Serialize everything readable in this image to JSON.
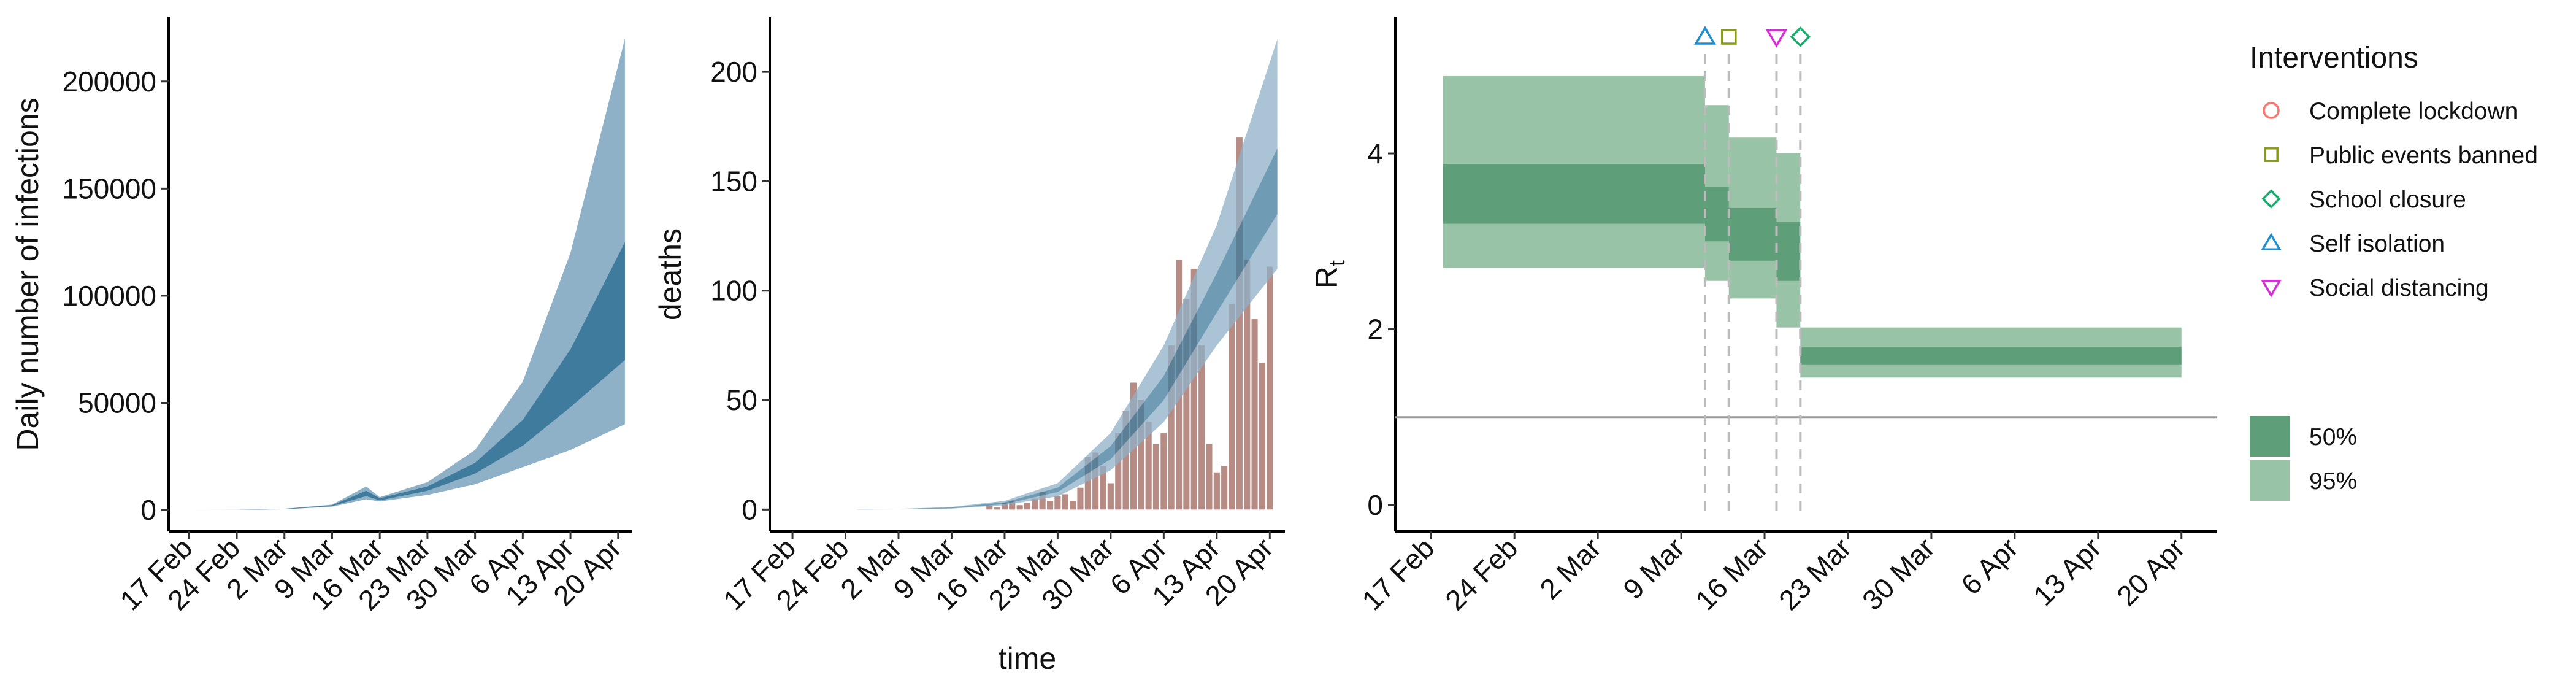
{
  "chart_data": [
    {
      "type": "area",
      "ylabel": "Daily number of infections",
      "xlabel": "",
      "x_ticks": [
        "17 Feb",
        "24 Feb",
        "2 Mar",
        "9 Mar",
        "16 Mar",
        "23 Mar",
        "30 Mar",
        "6 Apr",
        "13 Apr",
        "20 Apr"
      ],
      "y_ticks": [
        0,
        50000,
        100000,
        150000,
        200000
      ],
      "ylim": [
        -10000,
        230000
      ],
      "x_range": [
        "2020-02-14",
        "2020-04-22"
      ],
      "colors": {
        "band95": "#8fb1c7",
        "band50": "#3f7b9c"
      },
      "series": [
        {
          "band": "95%",
          "x": [
            "2020-02-17",
            "2020-02-24",
            "2020-03-02",
            "2020-03-09",
            "2020-03-14",
            "2020-03-16",
            "2020-03-23",
            "2020-03-30",
            "2020-04-06",
            "2020-04-13",
            "2020-04-21"
          ],
          "lower": [
            0,
            50,
            300,
            1500,
            5000,
            4000,
            7000,
            12000,
            20000,
            28000,
            40000
          ],
          "upper": [
            0,
            100,
            600,
            2500,
            11000,
            6000,
            13000,
            28000,
            60000,
            120000,
            220000
          ]
        },
        {
          "band": "50%",
          "x": [
            "2020-02-17",
            "2020-02-24",
            "2020-03-02",
            "2020-03-09",
            "2020-03-14",
            "2020-03-16",
            "2020-03-23",
            "2020-03-30",
            "2020-04-06",
            "2020-04-13",
            "2020-04-21"
          ],
          "lower": [
            0,
            70,
            400,
            1800,
            6500,
            4500,
            9000,
            17000,
            30000,
            48000,
            70000
          ],
          "upper": [
            0,
            90,
            500,
            2200,
            9000,
            5500,
            11000,
            22000,
            42000,
            75000,
            125000
          ]
        }
      ]
    },
    {
      "type": "bar",
      "ylabel": "deaths",
      "xlabel": "time",
      "x_ticks": [
        "17 Feb",
        "24 Feb",
        "2 Mar",
        "9 Mar",
        "16 Mar",
        "23 Mar",
        "30 Mar",
        "6 Apr",
        "13 Apr",
        "20 Apr"
      ],
      "y_ticks": [
        0,
        50,
        100,
        150,
        200
      ],
      "ylim": [
        -10,
        225
      ],
      "x_range": [
        "2020-02-14",
        "2020-04-22"
      ],
      "colors": {
        "bars": "#b78c85",
        "band95": "#8fb1c7",
        "band50": "#3f7b9c"
      },
      "bars": [
        {
          "date": "2020-03-14",
          "value": 2
        },
        {
          "date": "2020-03-15",
          "value": 1
        },
        {
          "date": "2020-03-16",
          "value": 3
        },
        {
          "date": "2020-03-17",
          "value": 4
        },
        {
          "date": "2020-03-18",
          "value": 2
        },
        {
          "date": "2020-03-19",
          "value": 3
        },
        {
          "date": "2020-03-20",
          "value": 5
        },
        {
          "date": "2020-03-21",
          "value": 8
        },
        {
          "date": "2020-03-22",
          "value": 4
        },
        {
          "date": "2020-03-23",
          "value": 6
        },
        {
          "date": "2020-03-24",
          "value": 7
        },
        {
          "date": "2020-03-25",
          "value": 4
        },
        {
          "date": "2020-03-26",
          "value": 10
        },
        {
          "date": "2020-03-27",
          "value": 24
        },
        {
          "date": "2020-03-28",
          "value": 26
        },
        {
          "date": "2020-03-29",
          "value": 20
        },
        {
          "date": "2020-03-30",
          "value": 12
        },
        {
          "date": "2020-03-31",
          "value": 35
        },
        {
          "date": "2020-04-01",
          "value": 45
        },
        {
          "date": "2020-04-02",
          "value": 58
        },
        {
          "date": "2020-04-03",
          "value": 50
        },
        {
          "date": "2020-04-04",
          "value": 40
        },
        {
          "date": "2020-04-05",
          "value": 30
        },
        {
          "date": "2020-04-06",
          "value": 35
        },
        {
          "date": "2020-04-07",
          "value": 75
        },
        {
          "date": "2020-04-08",
          "value": 114
        },
        {
          "date": "2020-04-09",
          "value": 96
        },
        {
          "date": "2020-04-10",
          "value": 110
        },
        {
          "date": "2020-04-11",
          "value": 75
        },
        {
          "date": "2020-04-12",
          "value": 30
        },
        {
          "date": "2020-04-13",
          "value": 17
        },
        {
          "date": "2020-04-14",
          "value": 20
        },
        {
          "date": "2020-04-15",
          "value": 94
        },
        {
          "date": "2020-04-16",
          "value": 170
        },
        {
          "date": "2020-04-17",
          "value": 114
        },
        {
          "date": "2020-04-18",
          "value": 87
        },
        {
          "date": "2020-04-19",
          "value": 67
        },
        {
          "date": "2020-04-20",
          "value": 111
        }
      ],
      "series": [
        {
          "band": "95%",
          "x": [
            "2020-02-24",
            "2020-03-02",
            "2020-03-09",
            "2020-03-16",
            "2020-03-23",
            "2020-03-30",
            "2020-04-06",
            "2020-04-13",
            "2020-04-21"
          ],
          "lower": [
            0,
            0.1,
            0.4,
            2,
            6,
            18,
            40,
            75,
            110
          ],
          "upper": [
            0,
            0.3,
            1.2,
            4,
            12,
            35,
            75,
            130,
            215
          ]
        },
        {
          "band": "50%",
          "x": [
            "2020-02-24",
            "2020-03-02",
            "2020-03-09",
            "2020-03-16",
            "2020-03-23",
            "2020-03-30",
            "2020-04-06",
            "2020-04-13",
            "2020-04-21"
          ],
          "lower": [
            0,
            0.15,
            0.6,
            2.5,
            8,
            23,
            50,
            90,
            135
          ],
          "upper": [
            0,
            0.2,
            0.9,
            3.3,
            10,
            29,
            61,
            108,
            165
          ]
        }
      ]
    },
    {
      "type": "area",
      "ylabel": "R",
      "ylabel_sub": "t",
      "xlabel": "",
      "x_ticks": [
        "17 Feb",
        "24 Feb",
        "2 Mar",
        "9 Mar",
        "16 Mar",
        "23 Mar",
        "30 Mar",
        "6 Apr",
        "13 Apr",
        "20 Apr"
      ],
      "y_ticks": [
        0,
        2,
        4
      ],
      "ylim": [
        -0.3,
        5.55
      ],
      "x_range": [
        "2020-02-14",
        "2020-04-23"
      ],
      "reference_line": 1,
      "colors": {
        "band50": "#5e9f7a",
        "band95": "#98c3a6",
        "refline": "#999999",
        "vline": "#bbbbbb"
      },
      "steps": [
        {
          "from": "2020-02-18",
          "to": "2020-03-11",
          "l95": 2.7,
          "u95": 4.88,
          "l50": 3.2,
          "u50": 3.88
        },
        {
          "from": "2020-03-11",
          "to": "2020-03-13",
          "l95": 2.55,
          "u95": 4.55,
          "l50": 3.0,
          "u50": 3.62
        },
        {
          "from": "2020-03-13",
          "to": "2020-03-17",
          "l95": 2.35,
          "u95": 4.18,
          "l50": 2.78,
          "u50": 3.38
        },
        {
          "from": "2020-03-17",
          "to": "2020-03-19",
          "l95": 2.02,
          "u95": 4.0,
          "l50": 2.55,
          "u50": 3.22
        },
        {
          "from": "2020-03-19",
          "to": "2020-04-20",
          "l95": 1.45,
          "u95": 2.02,
          "l50": 1.6,
          "u50": 1.8
        }
      ],
      "interventions": [
        {
          "name": "Self isolation",
          "date": "2020-03-11",
          "symbol": "triangle-up",
          "color": "#1f8ecf"
        },
        {
          "name": "Public events banned",
          "date": "2020-03-13",
          "symbol": "square",
          "color": "#8a9a1c"
        },
        {
          "name": "Social distancing",
          "date": "2020-03-17",
          "symbol": "triangle-down",
          "color": "#d62ed6"
        },
        {
          "name": "School closure",
          "date": "2020-03-19",
          "symbol": "diamond",
          "color": "#16ad6a"
        }
      ]
    }
  ],
  "legend": {
    "title": "Interventions",
    "items": [
      {
        "label": "Complete lockdown",
        "symbol": "circle",
        "color": "#f8766d"
      },
      {
        "label": "Public events banned",
        "symbol": "square",
        "color": "#8a9a1c"
      },
      {
        "label": "School closure",
        "symbol": "diamond",
        "color": "#16ad6a"
      },
      {
        "label": "Self isolation",
        "symbol": "triangle-up",
        "color": "#1f8ecf"
      },
      {
        "label": "Social distancing",
        "symbol": "triangle-down",
        "color": "#d62ed6"
      }
    ],
    "bands": [
      {
        "label": "50%",
        "color": "#5e9f7a"
      },
      {
        "label": "95%",
        "color": "#98c3a6"
      }
    ]
  }
}
